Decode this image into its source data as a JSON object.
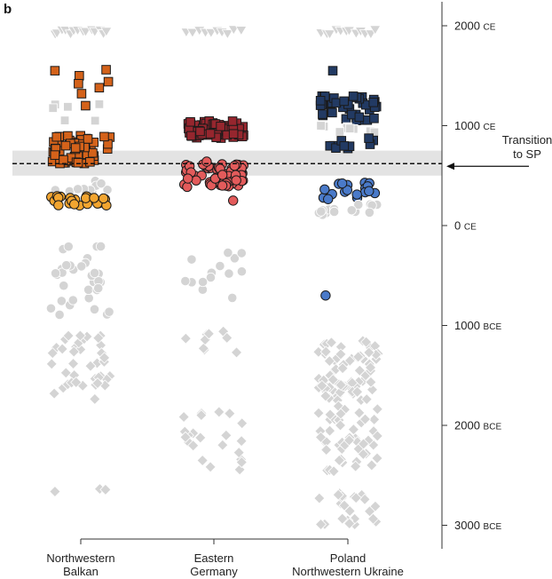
{
  "panel_label": "b",
  "chart_data": {
    "type": "scatter",
    "title": "",
    "xlabel": "",
    "ylabel": "",
    "categories": [
      "Northwestern Balkan",
      "Eastern Germany",
      "Poland Northwestern Ukraine"
    ],
    "category_lines": [
      [
        "Northwestern",
        "Balkan"
      ],
      [
        "Eastern",
        "Germany"
      ],
      [
        "Poland",
        "Northwestern Ukraine"
      ]
    ],
    "y_axis": {
      "position": "right",
      "range": [
        -3150,
        2200
      ],
      "ticks": [
        {
          "value": 2000,
          "number": "2000",
          "unit": "CE"
        },
        {
          "value": 1000,
          "number": "1000",
          "unit": "CE"
        },
        {
          "value": 0,
          "number": "0",
          "unit": "CE"
        },
        {
          "value": -1000,
          "number": "1000",
          "unit": "BCE"
        },
        {
          "value": -2000,
          "number": "2000",
          "unit": "BCE"
        },
        {
          "value": -3000,
          "number": "3000",
          "unit": "BCE"
        }
      ]
    },
    "transition": {
      "label_lines": [
        "Transition",
        "to SP"
      ],
      "value": 620,
      "band": [
        500,
        750
      ]
    },
    "colors": {
      "grey": "#d4d4d4",
      "balkan_square": "#d4621a",
      "balkan_circle": "#f2a530",
      "germany_square": "#96262e",
      "germany_circle": "#e35b5b",
      "poland_square": "#223a63",
      "poland_circle": "#4a7ac9",
      "band": "#e3e3e3"
    },
    "series": [
      {
        "category": 0,
        "shape": "triangle",
        "fill": "grey",
        "y_range": [
          1910,
          1960
        ],
        "n": 14
      },
      {
        "category": 0,
        "shape": "square",
        "fill": "balkan_square",
        "points": [
          1550,
          1560,
          1500,
          1440,
          1420,
          1380,
          1320,
          1200
        ]
      },
      {
        "category": 0,
        "shape": "square",
        "fill": "grey",
        "y_range": [
          1000,
          1250
        ],
        "n": 6
      },
      {
        "category": 0,
        "shape": "square",
        "fill": "balkan_square",
        "y_range": [
          620,
          900
        ],
        "n": 60
      },
      {
        "category": 0,
        "shape": "circle",
        "fill": "grey",
        "y_range": [
          330,
          450
        ],
        "n": 10
      },
      {
        "category": 0,
        "shape": "circle",
        "fill": "balkan_circle",
        "y_range": [
          200,
          300
        ],
        "n": 22
      },
      {
        "category": 0,
        "shape": "circle",
        "fill": "grey",
        "y_range": [
          -900,
          -200
        ],
        "n": 34
      },
      {
        "category": 0,
        "shape": "diamond",
        "fill": "grey",
        "y_range": [
          -1800,
          -1100
        ],
        "n": 40
      },
      {
        "category": 0,
        "shape": "diamond",
        "fill": "grey",
        "y_range": [
          -2850,
          -2600
        ],
        "n": 3
      },
      {
        "category": 1,
        "shape": "triangle",
        "fill": "grey",
        "y_range": [
          1910,
          1960
        ],
        "n": 10
      },
      {
        "category": 1,
        "shape": "square",
        "fill": "germany_square",
        "y_range": [
          870,
          1050
        ],
        "n": 60
      },
      {
        "category": 1,
        "shape": "circle",
        "fill": "germany_circle",
        "y_range": [
          380,
          620
        ],
        "n": 65
      },
      {
        "category": 1,
        "shape": "circle",
        "fill": "germany_circle",
        "points": [
          250,
          640
        ]
      },
      {
        "category": 1,
        "shape": "circle",
        "fill": "grey",
        "y_range": [
          -800,
          -200
        ],
        "n": 14
      },
      {
        "category": 1,
        "shape": "diamond",
        "fill": "grey",
        "y_range": [
          -1350,
          -1000
        ],
        "n": 9
      },
      {
        "category": 1,
        "shape": "diamond",
        "fill": "grey",
        "y_range": [
          -2450,
          -1800
        ],
        "n": 22
      },
      {
        "category": 2,
        "shape": "triangle",
        "fill": "grey",
        "y_range": [
          1910,
          1960
        ],
        "n": 12
      },
      {
        "category": 2,
        "shape": "square",
        "fill": "poland_square",
        "points": [
          1550
        ]
      },
      {
        "category": 2,
        "shape": "square",
        "fill": "poland_square",
        "y_range": [
          1050,
          1300
        ],
        "n": 38
      },
      {
        "category": 2,
        "shape": "square",
        "fill": "grey",
        "y_range": [
          900,
          1050
        ],
        "n": 10
      },
      {
        "category": 2,
        "shape": "square",
        "fill": "poland_square",
        "y_range": [
          750,
          880
        ],
        "n": 10
      },
      {
        "category": 2,
        "shape": "circle",
        "fill": "poland_circle",
        "y_range": [
          250,
          430
        ],
        "n": 18
      },
      {
        "category": 2,
        "shape": "circle",
        "fill": "grey",
        "y_range": [
          100,
          220
        ],
        "n": 16
      },
      {
        "category": 2,
        "shape": "circle",
        "fill": "poland_circle",
        "points": [
          -700
        ]
      },
      {
        "category": 2,
        "shape": "diamond",
        "fill": "grey",
        "y_range": [
          -1750,
          -1150
        ],
        "n": 70
      },
      {
        "category": 2,
        "shape": "diamond",
        "fill": "grey",
        "y_range": [
          -2500,
          -1800
        ],
        "n": 50
      },
      {
        "category": 2,
        "shape": "diamond",
        "fill": "grey",
        "y_range": [
          -3000,
          -2650
        ],
        "n": 24
      }
    ]
  }
}
